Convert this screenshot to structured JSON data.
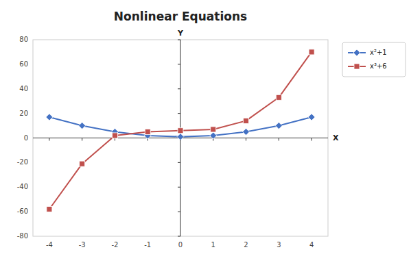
{
  "chart_data": {
    "type": "line",
    "title": "Nonlinear Equations",
    "x": [
      -4,
      -3,
      -2,
      -1,
      0,
      1,
      2,
      3,
      4
    ],
    "series": [
      {
        "name": "x²+1",
        "color": "#4472C4",
        "marker": "diamond",
        "values": [
          17,
          10,
          5,
          2,
          1,
          2,
          5,
          10,
          17
        ]
      },
      {
        "name": "x³+6",
        "color": "#C0504D",
        "marker": "square",
        "values": [
          -58,
          -21,
          2,
          5,
          6,
          7,
          14,
          33,
          70
        ]
      }
    ],
    "xlim": [
      -4.5,
      4.5
    ],
    "ylim": [
      -80,
      80
    ],
    "xticks": [
      -4,
      -3,
      -2,
      -1,
      0,
      1,
      2,
      3,
      4
    ],
    "yticks": [
      -80,
      -60,
      -40,
      -20,
      0,
      20,
      40,
      60,
      80
    ],
    "xlabel": "X",
    "ylabel": "Y",
    "grid": false,
    "legend": "right"
  }
}
